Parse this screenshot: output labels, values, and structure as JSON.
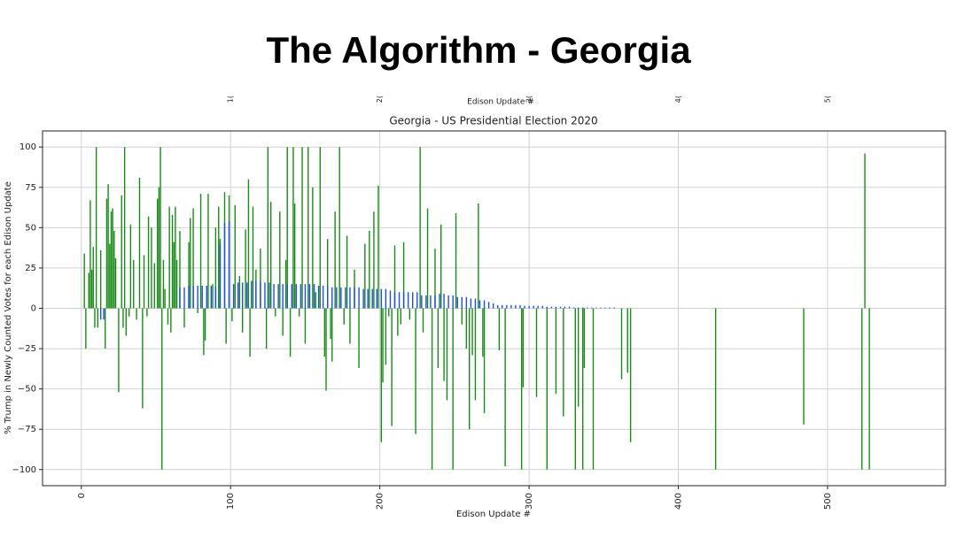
{
  "title": "The Algorithm - Georgia",
  "top_axis": {
    "label": "Edison Update #",
    "tick_labels": [
      "1(",
      "2(",
      "3(",
      "4(",
      "5("
    ]
  },
  "chart_data": {
    "type": "bar",
    "title": "Georgia - US Presidential Election 2020",
    "x_label": "Edison Update #",
    "y_label": "% Trump in Newly Counted Votes for each Edison Update",
    "xlim": [
      -26,
      579
    ],
    "ylim": [
      -110,
      110
    ],
    "xticks": [
      0,
      100,
      200,
      300,
      400,
      500
    ],
    "yticks": [
      {
        "value": -100,
        "label": "−100"
      },
      {
        "value": -75,
        "label": "−75"
      },
      {
        "value": -50,
        "label": "−50"
      },
      {
        "value": -25,
        "label": "−25"
      },
      0,
      25,
      50,
      75,
      100
    ],
    "grid": true,
    "series": [
      {
        "name": "green",
        "color": "#1a8a1a",
        "x": [
          2,
          3,
          5,
          6,
          7,
          8,
          9,
          10,
          11,
          13,
          16,
          17,
          18,
          19,
          20,
          21,
          22,
          23,
          25,
          27,
          28,
          29,
          30,
          32,
          33,
          35,
          37,
          39,
          41,
          42,
          44,
          45,
          47,
          49,
          51,
          52,
          53,
          54,
          55,
          56,
          58,
          59,
          60,
          61,
          62,
          63,
          64,
          66,
          69,
          72,
          73,
          75,
          78,
          80,
          82,
          83,
          85,
          88,
          90,
          92,
          93,
          96,
          97,
          99,
          101,
          103,
          106,
          108,
          110,
          112,
          113,
          115,
          117,
          120,
          124,
          125,
          127,
          130,
          133,
          135,
          137,
          138,
          140,
          142,
          143,
          146,
          148,
          150,
          152,
          155,
          157,
          160,
          163,
          164,
          165,
          167,
          168,
          170,
          173,
          176,
          178,
          180,
          183,
          186,
          190,
          193,
          196,
          199,
          201,
          202,
          204,
          206,
          208,
          210,
          212,
          214,
          216,
          220,
          224,
          227,
          229,
          232,
          235,
          237,
          239,
          241,
          243,
          245,
          249,
          251,
          255,
          258,
          260,
          262,
          264,
          266,
          269,
          270,
          280,
          284,
          295,
          296,
          305,
          312,
          318,
          323,
          331,
          333,
          336,
          337,
          343,
          362,
          366,
          368,
          425,
          484,
          523,
          525,
          528
        ],
        "values": [
          34,
          -25,
          22,
          67,
          24,
          38,
          -12,
          100,
          -12,
          36,
          -25,
          68,
          77,
          40,
          60,
          62,
          48,
          31,
          -52,
          70,
          -12,
          100,
          -17,
          -5,
          52,
          30,
          -7,
          81,
          -62,
          33,
          -5,
          57,
          50,
          28,
          68,
          75,
          100,
          -100,
          30,
          12,
          -10,
          63,
          -15,
          58,
          41,
          63,
          30,
          48,
          -12,
          41,
          56,
          62,
          -3,
          71,
          -29,
          -20,
          71,
          15,
          50,
          63,
          43,
          72,
          -22,
          70,
          -8,
          64,
          20,
          -15,
          49,
          80,
          -30,
          63,
          24,
          37,
          -25,
          100,
          66,
          -5,
          60,
          -17,
          30,
          100,
          -30,
          100,
          65,
          -5,
          100,
          -22,
          100,
          75,
          10,
          100,
          -30,
          -51,
          43,
          -19,
          -33,
          60,
          100,
          -10,
          45,
          -22,
          24,
          -37,
          40,
          48,
          60,
          76,
          -83,
          -46,
          -35,
          -5,
          -73,
          39,
          -17,
          -10,
          41,
          -7,
          -78,
          100,
          -15,
          62,
          -100,
          37,
          -37,
          52,
          -45,
          -57,
          -100,
          59,
          -10,
          -25,
          -75,
          -29,
          -57,
          65,
          -30,
          -65,
          -26,
          -98,
          -100,
          -49,
          -55,
          -100,
          -53,
          -67,
          -100,
          -61,
          -100,
          -37,
          -100,
          -44,
          -40,
          -83,
          -100,
          -72,
          -100,
          96,
          -100
        ]
      },
      {
        "name": "blue",
        "color": "#1f4fd8",
        "x": [
          13,
          15,
          66,
          69,
          72,
          75,
          78,
          81,
          84,
          87,
          90,
          93,
          96,
          99,
          102,
          105,
          108,
          111,
          114,
          117,
          120,
          123,
          126,
          129,
          132,
          135,
          138,
          141,
          144,
          147,
          150,
          153,
          156,
          159,
          162,
          165,
          168,
          171,
          174,
          177,
          180,
          183,
          186,
          189,
          192,
          195,
          198,
          201,
          204,
          207,
          210,
          213,
          216,
          219,
          222,
          225,
          228,
          231,
          234,
          237,
          240,
          243,
          246,
          249,
          252,
          255,
          258,
          261,
          264,
          267,
          270,
          273,
          276,
          279,
          282,
          285,
          288,
          291,
          294,
          297,
          300,
          303,
          306,
          309,
          312,
          315,
          318,
          321,
          324,
          327,
          330,
          333,
          336,
          339,
          342,
          345,
          348,
          351,
          354,
          357
        ],
        "values": [
          -7,
          -7,
          13,
          13,
          14,
          14,
          14,
          14,
          14,
          14,
          13,
          40,
          53,
          54,
          15,
          16,
          16,
          16,
          17,
          17,
          17,
          16,
          16,
          15,
          15,
          15,
          15,
          15,
          15,
          15,
          15,
          15,
          15,
          14,
          14,
          14,
          13,
          13,
          13,
          13,
          13,
          13,
          13,
          12,
          12,
          12,
          12,
          12,
          12,
          11,
          10,
          10,
          10,
          10,
          10,
          10,
          8,
          8,
          8,
          8,
          9,
          9,
          8,
          8,
          7,
          7,
          7,
          6,
          6,
          5,
          5,
          4,
          3,
          2,
          2,
          2,
          2,
          2,
          2,
          1.5,
          1.5,
          1.5,
          1.5,
          1.5,
          1,
          1,
          1,
          1,
          1,
          1,
          0.5,
          0.5,
          0.5,
          0.5,
          0.5,
          0.5,
          0.5,
          0.5,
          0.5,
          0.5
        ]
      }
    ]
  }
}
